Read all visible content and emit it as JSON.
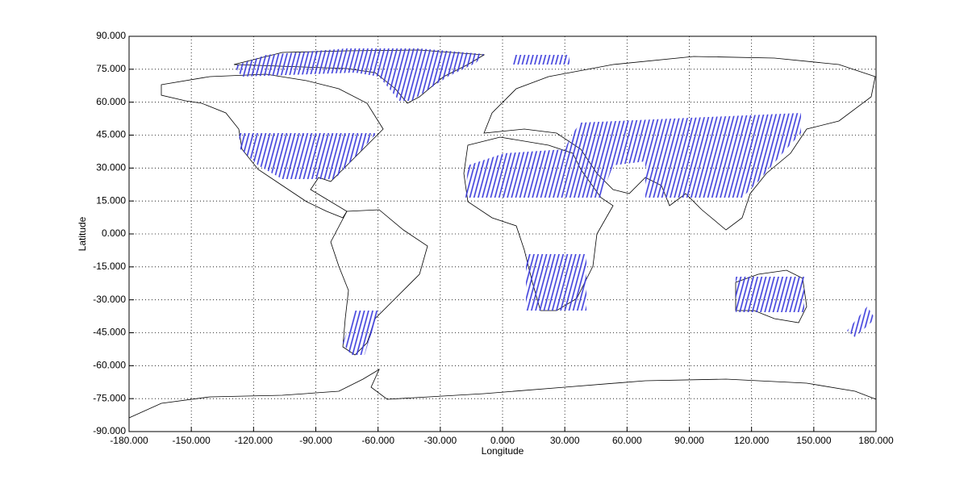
{
  "chart_data": {
    "type": "map",
    "x_label": "Longitude",
    "y_label": "Latitude",
    "xlim": [
      -180,
      180
    ],
    "xticks": [
      {
        "value": -180,
        "label": "-180.000"
      },
      {
        "value": -150,
        "label": "-150.000"
      },
      {
        "value": -120,
        "label": "-120.000"
      },
      {
        "value": -90,
        "label": "-90.000"
      },
      {
        "value": -60,
        "label": "-60.000"
      },
      {
        "value": -30,
        "label": "-30.000"
      },
      {
        "value": 0,
        "label": "0.000"
      },
      {
        "value": 30,
        "label": "30.000"
      },
      {
        "value": 60,
        "label": "60.000"
      },
      {
        "value": 90,
        "label": "90.000"
      },
      {
        "value": 120,
        "label": "120.000"
      },
      {
        "value": 150,
        "label": "150.000"
      },
      {
        "value": 180,
        "label": "180.000"
      }
    ],
    "ylim": [
      -90,
      90
    ],
    "yticks": [
      {
        "value": -90,
        "label": "-90.000"
      },
      {
        "value": -75,
        "label": "-75.000"
      },
      {
        "value": -60,
        "label": "-60.000"
      },
      {
        "value": -45,
        "label": "-45.000"
      },
      {
        "value": -30,
        "label": "-30.000"
      },
      {
        "value": -15,
        "label": "-15.000"
      },
      {
        "value": 0,
        "label": "0.000"
      },
      {
        "value": 15,
        "label": "15.000"
      },
      {
        "value": 30,
        "label": "30.000"
      },
      {
        "value": 45,
        "label": "45.000"
      },
      {
        "value": 60,
        "label": "60.000"
      },
      {
        "value": 75,
        "label": "75.000"
      },
      {
        "value": 90,
        "label": "90.000"
      }
    ],
    "grid": true
  }
}
